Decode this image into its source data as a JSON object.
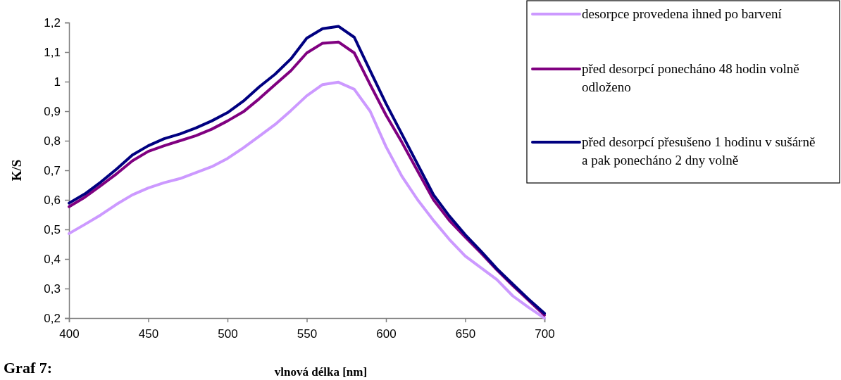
{
  "chart_data": {
    "type": "line",
    "xlabel": "vlnová délka [nm]",
    "ylabel": "K/S",
    "annotations": [
      "Graf 7:"
    ],
    "x": [
      400,
      410,
      420,
      430,
      440,
      450,
      460,
      470,
      480,
      490,
      500,
      510,
      520,
      530,
      540,
      550,
      560,
      570,
      580,
      590,
      600,
      610,
      620,
      630,
      640,
      650,
      660,
      670,
      680,
      690,
      700
    ],
    "series": [
      {
        "name": "desorpce provedena ihned po barvení",
        "color": "#cc99ff",
        "values": [
          0.486,
          0.517,
          0.549,
          0.585,
          0.617,
          0.64,
          0.658,
          0.672,
          0.692,
          0.712,
          0.74,
          0.776,
          0.815,
          0.855,
          0.902,
          0.952,
          0.99,
          0.998,
          0.974,
          0.9,
          0.78,
          0.68,
          0.6,
          0.53,
          0.466,
          0.41,
          0.37,
          0.33,
          0.275,
          0.236,
          0.2
        ]
      },
      {
        "name": "před desorpcí ponecháno 48 hodin volně odloženo",
        "color": "#800080",
        "values": [
          0.577,
          0.609,
          0.648,
          0.688,
          0.732,
          0.764,
          0.783,
          0.8,
          0.817,
          0.839,
          0.867,
          0.898,
          0.942,
          0.99,
          1.037,
          1.097,
          1.13,
          1.134,
          1.097,
          0.99,
          0.887,
          0.795,
          0.697,
          0.6,
          0.53,
          0.474,
          0.42,
          0.363,
          0.31,
          0.26,
          0.21
        ]
      },
      {
        "name": "před desorpcí přesušeno 1 hodinu v sušárně a pak ponecháno 2 dny volně",
        "color": "#000080",
        "values": [
          0.589,
          0.62,
          0.66,
          0.704,
          0.752,
          0.783,
          0.807,
          0.823,
          0.843,
          0.867,
          0.895,
          0.934,
          0.982,
          1.025,
          1.077,
          1.147,
          1.179,
          1.187,
          1.15,
          1.037,
          0.926,
          0.823,
          0.72,
          0.617,
          0.545,
          0.482,
          0.426,
          0.367,
          0.315,
          0.264,
          0.216
        ]
      }
    ],
    "xlim": [
      400,
      700
    ],
    "xticks": [
      400,
      450,
      500,
      550,
      600,
      650,
      700
    ],
    "ylim": [
      0.2,
      1.2
    ],
    "yticks": [
      {
        "value": 0.2,
        "label": "0,2"
      },
      {
        "value": 0.3,
        "label": "0,3"
      },
      {
        "value": 0.4,
        "label": "0,4"
      },
      {
        "value": 0.5,
        "label": "0,5"
      },
      {
        "value": 0.6,
        "label": "0,6"
      },
      {
        "value": 0.7,
        "label": "0,7"
      },
      {
        "value": 0.8,
        "label": "0,8"
      },
      {
        "value": 0.9,
        "label": "0,9"
      },
      {
        "value": 1,
        "label": "1"
      },
      {
        "value": 1.1,
        "label": "1,1"
      },
      {
        "value": 1.2,
        "label": "1,2"
      }
    ],
    "grid": false,
    "legend": "right",
    "marker": "none",
    "line_style": "solid"
  }
}
